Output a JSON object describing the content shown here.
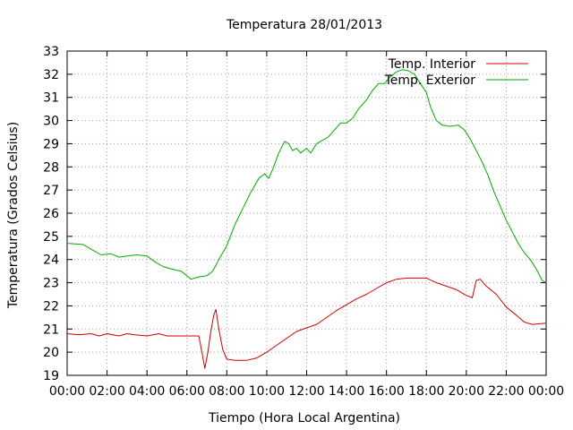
{
  "chart_data": {
    "type": "line",
    "title": "Temperatura 28/01/2013",
    "xlabel": "Tiempo (Hora Local Argentina)",
    "ylabel": "Temperatura (Grados Celsius)",
    "xlim": [
      0,
      24
    ],
    "ylim": [
      19,
      33
    ],
    "x_tick_labels": [
      "00:00",
      "02:00",
      "04:00",
      "06:00",
      "08:00",
      "10:00",
      "12:00",
      "14:00",
      "16:00",
      "18:00",
      "20:00",
      "22:00",
      "00:00"
    ],
    "y_tick_labels": [
      "19",
      "20",
      "21",
      "22",
      "23",
      "24",
      "25",
      "26",
      "27",
      "28",
      "29",
      "30",
      "31",
      "32",
      "33"
    ],
    "grid": true,
    "legend_position": "top-right",
    "series": [
      {
        "name": "Temp. Interior",
        "color": "#cc0000",
        "points": [
          [
            0,
            20.8
          ],
          [
            0.6,
            20.75
          ],
          [
            1.2,
            20.8
          ],
          [
            1.6,
            20.7
          ],
          [
            2.0,
            20.8
          ],
          [
            2.6,
            20.7
          ],
          [
            3.0,
            20.8
          ],
          [
            3.4,
            20.75
          ],
          [
            4.0,
            20.7
          ],
          [
            4.6,
            20.8
          ],
          [
            5.0,
            20.7
          ],
          [
            5.6,
            20.7
          ],
          [
            6.2,
            20.7
          ],
          [
            6.6,
            20.7
          ],
          [
            6.75,
            20.0
          ],
          [
            6.9,
            19.3
          ],
          [
            7.05,
            20.0
          ],
          [
            7.2,
            20.9
          ],
          [
            7.35,
            21.6
          ],
          [
            7.45,
            21.85
          ],
          [
            7.6,
            21.0
          ],
          [
            7.8,
            20.1
          ],
          [
            8.0,
            19.7
          ],
          [
            8.4,
            19.65
          ],
          [
            9.0,
            19.65
          ],
          [
            9.5,
            19.75
          ],
          [
            10.0,
            20.0
          ],
          [
            10.5,
            20.3
          ],
          [
            11.0,
            20.6
          ],
          [
            11.5,
            20.9
          ],
          [
            12.0,
            21.05
          ],
          [
            12.5,
            21.2
          ],
          [
            13.0,
            21.5
          ],
          [
            13.5,
            21.8
          ],
          [
            14.0,
            22.05
          ],
          [
            14.5,
            22.3
          ],
          [
            15.0,
            22.5
          ],
          [
            15.5,
            22.75
          ],
          [
            16.0,
            23.0
          ],
          [
            16.5,
            23.15
          ],
          [
            17.0,
            23.2
          ],
          [
            17.5,
            23.2
          ],
          [
            18.0,
            23.2
          ],
          [
            18.5,
            23.0
          ],
          [
            19.0,
            22.85
          ],
          [
            19.5,
            22.7
          ],
          [
            20.0,
            22.45
          ],
          [
            20.3,
            22.35
          ],
          [
            20.5,
            23.1
          ],
          [
            20.7,
            23.15
          ],
          [
            21.0,
            22.85
          ],
          [
            21.5,
            22.5
          ],
          [
            22.0,
            21.95
          ],
          [
            22.5,
            21.6
          ],
          [
            22.9,
            21.3
          ],
          [
            23.3,
            21.2
          ],
          [
            24.0,
            21.25
          ]
        ]
      },
      {
        "name": "Temp. Exterior",
        "color": "#00aa00",
        "points": [
          [
            0,
            24.7
          ],
          [
            0.8,
            24.65
          ],
          [
            1.3,
            24.4
          ],
          [
            1.7,
            24.2
          ],
          [
            2.2,
            24.25
          ],
          [
            2.6,
            24.1
          ],
          [
            3.0,
            24.15
          ],
          [
            3.5,
            24.2
          ],
          [
            4.0,
            24.15
          ],
          [
            4.4,
            23.9
          ],
          [
            4.8,
            23.7
          ],
          [
            5.2,
            23.6
          ],
          [
            5.7,
            23.5
          ],
          [
            6.0,
            23.3
          ],
          [
            6.2,
            23.15
          ],
          [
            6.6,
            23.25
          ],
          [
            7.0,
            23.3
          ],
          [
            7.3,
            23.5
          ],
          [
            7.6,
            24.0
          ],
          [
            8.0,
            24.6
          ],
          [
            8.4,
            25.5
          ],
          [
            8.8,
            26.2
          ],
          [
            9.2,
            26.9
          ],
          [
            9.6,
            27.5
          ],
          [
            9.9,
            27.7
          ],
          [
            10.1,
            27.5
          ],
          [
            10.3,
            27.9
          ],
          [
            10.6,
            28.6
          ],
          [
            10.9,
            29.1
          ],
          [
            11.1,
            29.0
          ],
          [
            11.3,
            28.7
          ],
          [
            11.5,
            28.8
          ],
          [
            11.7,
            28.6
          ],
          [
            12.0,
            28.8
          ],
          [
            12.2,
            28.6
          ],
          [
            12.5,
            29.0
          ],
          [
            12.8,
            29.15
          ],
          [
            13.1,
            29.3
          ],
          [
            13.4,
            29.6
          ],
          [
            13.7,
            29.9
          ],
          [
            14.0,
            29.9
          ],
          [
            14.3,
            30.1
          ],
          [
            14.6,
            30.5
          ],
          [
            15.0,
            30.9
          ],
          [
            15.3,
            31.3
          ],
          [
            15.6,
            31.6
          ],
          [
            15.9,
            31.6
          ],
          [
            16.2,
            31.9
          ],
          [
            16.5,
            32.1
          ],
          [
            16.8,
            32.2
          ],
          [
            17.1,
            32.15
          ],
          [
            17.4,
            32.0
          ],
          [
            17.7,
            31.6
          ],
          [
            18.0,
            31.2
          ],
          [
            18.2,
            30.6
          ],
          [
            18.5,
            30.0
          ],
          [
            18.8,
            29.8
          ],
          [
            19.2,
            29.75
          ],
          [
            19.6,
            29.8
          ],
          [
            19.9,
            29.6
          ],
          [
            20.2,
            29.2
          ],
          [
            20.5,
            28.7
          ],
          [
            20.8,
            28.2
          ],
          [
            21.1,
            27.6
          ],
          [
            21.4,
            26.9
          ],
          [
            21.7,
            26.3
          ],
          [
            22.0,
            25.7
          ],
          [
            22.3,
            25.2
          ],
          [
            22.6,
            24.7
          ],
          [
            22.9,
            24.3
          ],
          [
            23.2,
            24.0
          ],
          [
            23.5,
            23.6
          ],
          [
            23.8,
            23.1
          ],
          [
            24.0,
            23.0
          ]
        ]
      }
    ]
  }
}
